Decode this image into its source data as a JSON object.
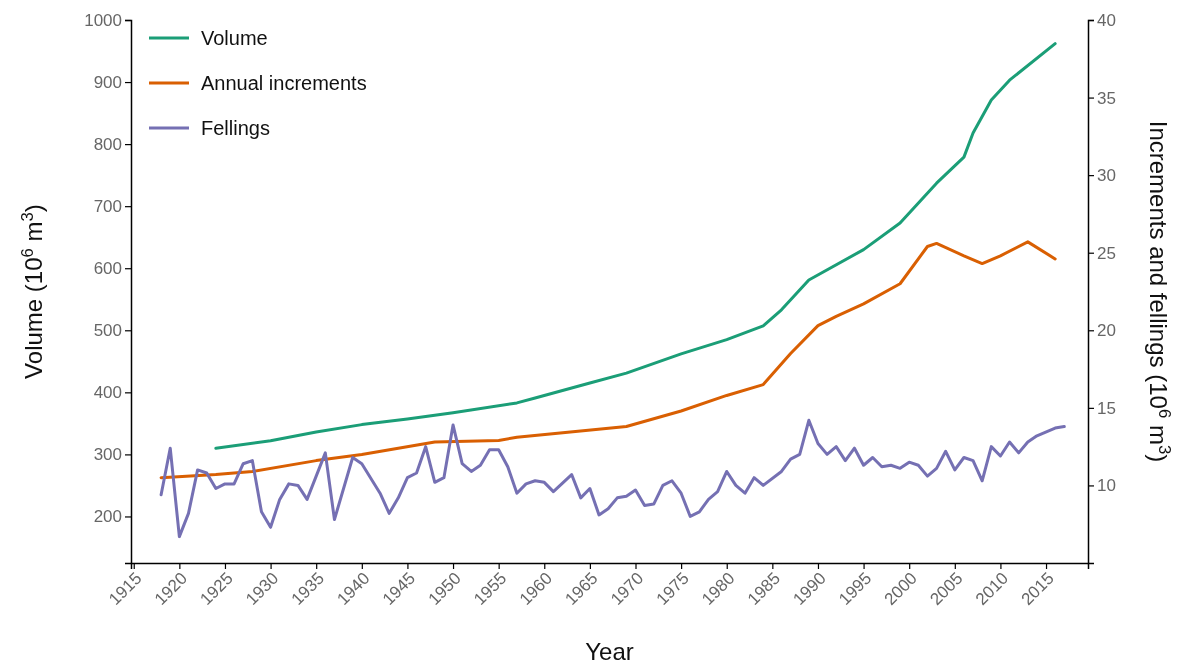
{
  "chart_data": {
    "type": "line",
    "xlabel": "Year",
    "ylabel": "Volume (10$^{6}$ m$^{3}$)",
    "y2label": "Increments and fellings (10$^{6}$ m$^{3}$)",
    "xlim": [
      1914.7,
      2019.6
    ],
    "xticks": [
      1915,
      1920,
      1925,
      1930,
      1935,
      1940,
      1945,
      1950,
      1955,
      1960,
      1965,
      1970,
      1975,
      1980,
      1985,
      1990,
      1995,
      2000,
      2005,
      2010,
      2015
    ],
    "ylim": [
      125,
      1000
    ],
    "yticks": [
      200,
      300,
      400,
      500,
      600,
      700,
      800,
      900,
      1000
    ],
    "y2lim": [
      5,
      40
    ],
    "y2ticks": [
      10,
      15,
      20,
      25,
      30,
      35,
      40
    ],
    "legend": "top left",
    "grid": false,
    "line_style": "solid",
    "series": [
      {
        "name": "Volume",
        "color": "#1b9e77",
        "x": [
          1924,
          1930,
          1935,
          1940,
          1945,
          1950,
          1957,
          1959,
          1965,
          1969,
          1975,
          1980,
          1984,
          1986,
          1989,
          1995,
          1999,
          2003,
          2006,
          2007,
          2009,
          2011,
          2016
        ],
        "values": [
          310,
          322,
          336,
          348,
          357,
          367,
          383,
          391,
          415,
          431,
          462,
          485,
          507,
          533,
          581,
          630,
          673,
          737,
          779,
          818,
          871,
          903,
          962
        ]
      },
      {
        "name": "Annual increments",
        "color": "#d95f02",
        "axis": "y2",
        "x": [
          1918,
          1924,
          1928,
          1935,
          1940,
          1948,
          1955,
          1957,
          1969,
          1975,
          1980,
          1984,
          1987,
          1990,
          1992,
          1995,
          1999,
          2002,
          2003,
          2006,
          2008,
          2010,
          2013,
          2016
        ],
        "values": [
          10.5,
          10.7,
          10.9,
          11.6,
          12.0,
          12.8,
          12.9,
          13.1,
          13.8,
          14.8,
          15.8,
          16.5,
          18.5,
          20.3,
          20.9,
          21.7,
          23.0,
          25.4,
          25.6,
          24.8,
          24.3,
          24.8,
          25.7,
          24.6
        ]
      },
      {
        "name": "Fellings",
        "color": "#7570b3",
        "axis": "y2",
        "x": [
          1918,
          1919,
          1920,
          1921,
          1922,
          1923,
          1924,
          1925,
          1926,
          1927,
          1928,
          1929,
          1930,
          1931,
          1932,
          1933,
          1934,
          1936,
          1937,
          1939,
          1940,
          1942,
          1943,
          1944,
          1945,
          1946,
          1947,
          1948,
          1949,
          1950,
          1951,
          1952,
          1953,
          1954,
          1955,
          1956,
          1957,
          1958,
          1959,
          1960,
          1961,
          1963,
          1964,
          1965,
          1966,
          1967,
          1968,
          1969,
          1970,
          1971,
          1972,
          1973,
          1974,
          1975,
          1976,
          1977,
          1978,
          1979,
          1980,
          1981,
          1982,
          1983,
          1984,
          1986,
          1987,
          1988,
          1989,
          1990,
          1991,
          1992,
          1993,
          1994,
          1995,
          1996,
          1997,
          1998,
          1999,
          2000,
          2001,
          2002,
          2003,
          2004,
          2005,
          2006,
          2007,
          2008,
          2009,
          2010,
          2011,
          2012,
          2013,
          2014,
          2016,
          2017
        ],
        "values": [
          9.4,
          12.4,
          6.7,
          8.2,
          11.0,
          10.8,
          9.8,
          10.1,
          10.1,
          11.4,
          11.6,
          8.3,
          7.3,
          9.1,
          10.1,
          10.0,
          9.1,
          12.1,
          7.8,
          11.8,
          11.4,
          9.5,
          8.2,
          9.2,
          10.5,
          10.8,
          12.5,
          10.2,
          10.5,
          13.9,
          11.4,
          10.9,
          11.3,
          12.3,
          12.3,
          11.2,
          9.5,
          10.1,
          10.3,
          10.2,
          9.6,
          10.7,
          9.2,
          9.8,
          8.1,
          8.5,
          9.2,
          9.3,
          9.7,
          8.7,
          8.8,
          10.0,
          10.3,
          9.5,
          8.0,
          8.3,
          9.1,
          9.6,
          10.9,
          10.0,
          9.5,
          10.5,
          10.0,
          10.9,
          11.7,
          12.0,
          14.2,
          12.7,
          12.0,
          12.5,
          11.6,
          12.4,
          11.3,
          11.8,
          11.2,
          11.3,
          11.1,
          11.5,
          11.3,
          10.6,
          11.1,
          12.2,
          11.0,
          11.8,
          11.6,
          10.3,
          12.5,
          11.9,
          12.8,
          12.1,
          12.8,
          13.2,
          13.7,
          13.8
        ]
      }
    ]
  }
}
